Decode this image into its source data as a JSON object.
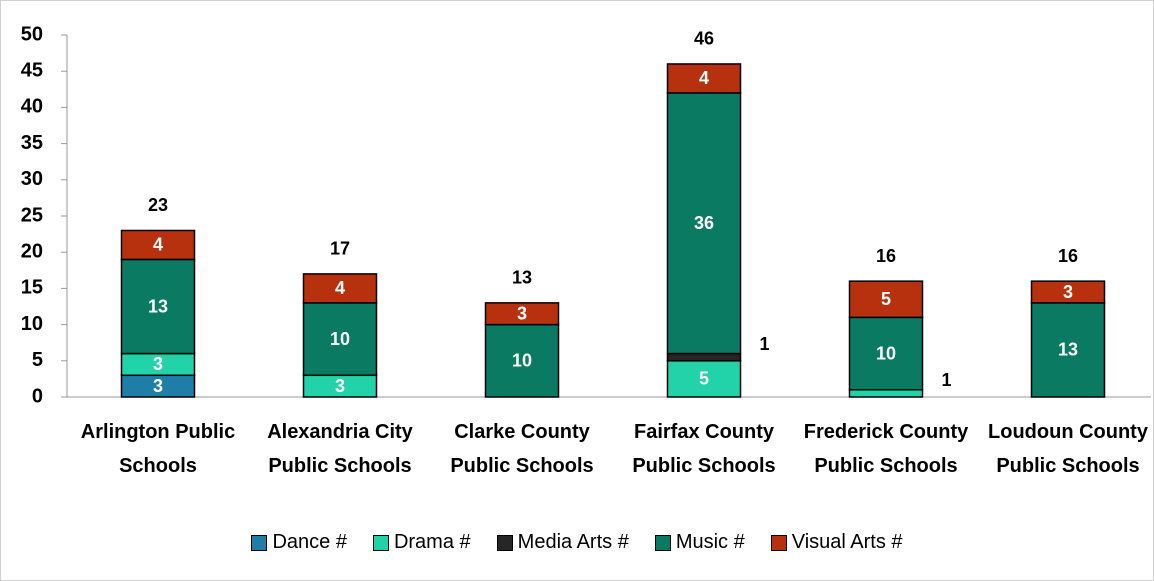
{
  "chart_data": {
    "type": "stacked_bar",
    "categories": [
      "Arlington Public Schools",
      "Alexandria City Public Schools",
      "Clarke County Public Schools",
      "Fairfax County Public Schools",
      "Frederick County Public Schools",
      "Loudoun County Public Schools"
    ],
    "series": [
      {
        "name": "Dance #",
        "color": "#1f7ea8",
        "values": [
          3,
          0,
          0,
          0,
          0,
          0
        ]
      },
      {
        "name": "Drama #",
        "color": "#22d3a9",
        "values": [
          3,
          3,
          0,
          5,
          1,
          0
        ]
      },
      {
        "name": "Media Arts #",
        "color": "#262626",
        "values": [
          0,
          0,
          0,
          1,
          0,
          0
        ]
      },
      {
        "name": "Music #",
        "color": "#0b7a63",
        "values": [
          13,
          10,
          10,
          36,
          10,
          13
        ]
      },
      {
        "name": "Visual Arts #",
        "color": "#b8310f",
        "values": [
          4,
          4,
          3,
          4,
          5,
          3
        ]
      }
    ],
    "totals": [
      23,
      17,
      13,
      46,
      16,
      16
    ],
    "ylim": [
      0,
      50
    ],
    "yticks": [
      0,
      5,
      10,
      15,
      20,
      25,
      30,
      35,
      40,
      45,
      50
    ],
    "legend": "bottom"
  }
}
